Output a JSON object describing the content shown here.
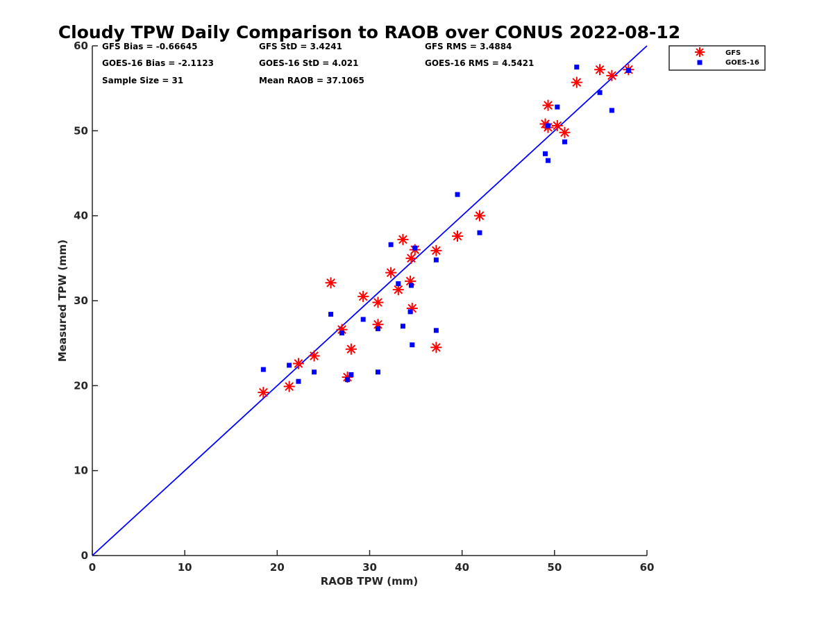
{
  "chart_data": {
    "type": "scatter",
    "title": "Cloudy TPW Daily Comparison to RAOB over CONUS 2022-08-12",
    "xlabel": "RAOB TPW (mm)",
    "ylabel": "Measured TPW (mm)",
    "xlim": [
      0,
      60
    ],
    "ylim": [
      0,
      60
    ],
    "xticks": [
      0,
      10,
      20,
      30,
      40,
      50,
      60
    ],
    "yticks": [
      0,
      10,
      20,
      30,
      40,
      50,
      60
    ],
    "grid": false,
    "legend_position": "top-right outside",
    "reference_line": {
      "x": [
        0,
        60
      ],
      "y": [
        0,
        60
      ],
      "color": "#0000ff"
    },
    "stats": [
      [
        "GFS Bias = -0.66645",
        "GFS StD = 3.4241",
        "GFS RMS = 3.4884"
      ],
      [
        "GOES-16 Bias = -2.1123",
        "GOES-16 StD = 4.021",
        "GOES-16 RMS = 4.5421"
      ],
      [
        "Sample Size = 31",
        "Mean RAOB = 37.1065"
      ]
    ],
    "series": [
      {
        "name": "GFS",
        "marker": "asterisk",
        "color": "#ff0000",
        "x": [
          18.5,
          21.3,
          22.3,
          24.0,
          25.8,
          27.0,
          27.6,
          28.0,
          29.3,
          30.9,
          30.9,
          32.3,
          33.1,
          33.6,
          34.4,
          34.5,
          34.6,
          34.9,
          37.2,
          37.2,
          39.5,
          41.9,
          49.0,
          49.3,
          49.3,
          50.3,
          51.1,
          52.4,
          54.9,
          56.2,
          58.0
        ],
        "y": [
          19.2,
          19.9,
          22.6,
          23.5,
          32.1,
          26.6,
          21.0,
          24.3,
          30.5,
          27.2,
          29.8,
          33.3,
          31.3,
          37.2,
          32.3,
          35.0,
          29.1,
          36.0,
          35.9,
          24.5,
          37.6,
          40.0,
          50.8,
          53.0,
          50.4,
          50.6,
          49.8,
          55.7,
          57.2,
          56.5,
          57.2
        ]
      },
      {
        "name": "GOES-16",
        "marker": "square",
        "color": "#0000ff",
        "x": [
          18.5,
          21.3,
          22.3,
          24.0,
          25.8,
          27.0,
          27.6,
          28.0,
          29.3,
          30.9,
          30.9,
          32.3,
          33.1,
          33.6,
          34.4,
          34.5,
          34.6,
          34.9,
          37.2,
          37.2,
          39.5,
          41.9,
          49.0,
          49.3,
          49.3,
          50.3,
          51.1,
          52.4,
          54.9,
          56.2,
          58.0
        ],
        "y": [
          21.9,
          22.4,
          20.5,
          21.6,
          28.4,
          26.2,
          20.7,
          21.3,
          27.8,
          26.7,
          21.6,
          36.6,
          32.0,
          27.0,
          28.7,
          31.8,
          24.8,
          36.2,
          34.8,
          26.5,
          42.5,
          38.0,
          47.3,
          46.5,
          50.6,
          52.8,
          48.7,
          57.5,
          54.5,
          52.4,
          57.1
        ]
      }
    ]
  }
}
